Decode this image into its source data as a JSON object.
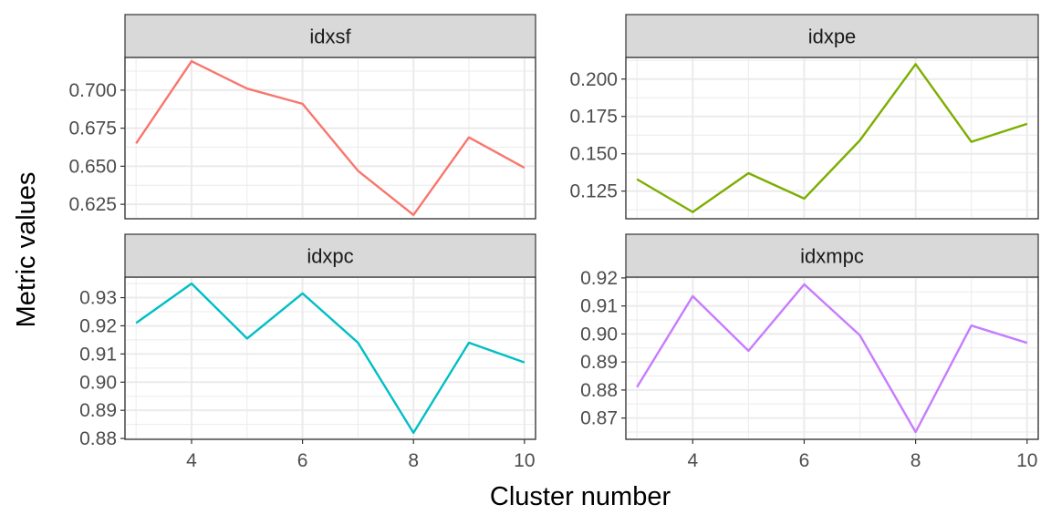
{
  "chart_data": {
    "type": "line",
    "layout": "facet-grid-2x2",
    "xlabel": "Cluster number",
    "ylabel": "Metric values",
    "x": [
      3,
      4,
      5,
      6,
      7,
      8,
      9,
      10
    ],
    "xlim": [
      2.8,
      10.2
    ],
    "xticks": [
      4,
      6,
      8,
      10
    ],
    "scales_y": "free",
    "grid": true,
    "legend": "none",
    "panels": [
      {
        "title": "idxsf",
        "color": "#F8766D",
        "values": [
          0.665,
          0.719,
          0.701,
          0.691,
          0.647,
          0.618,
          0.669,
          0.649
        ],
        "ylim": [
          0.6155,
          0.7215
        ],
        "yticks": [
          "0.625",
          "0.650",
          "0.675",
          "0.700"
        ]
      },
      {
        "title": "idxpe",
        "color": "#7CAE00",
        "values": [
          0.133,
          0.111,
          0.137,
          0.12,
          0.159,
          0.21,
          0.158,
          0.17
        ],
        "ylim": [
          0.1065,
          0.2145
        ],
        "yticks": [
          "0.125",
          "0.150",
          "0.175",
          "0.200"
        ]
      },
      {
        "title": "idxpc",
        "color": "#00BFC4",
        "values": [
          0.921,
          0.935,
          0.9155,
          0.9315,
          0.914,
          0.882,
          0.914,
          0.907
        ],
        "ylim": [
          0.8797,
          0.9373
        ],
        "yticks": [
          "0.88",
          "0.89",
          "0.90",
          "0.91",
          "0.92",
          "0.93"
        ]
      },
      {
        "title": "idxmpc",
        "color": "#C77CFF",
        "values": [
          0.881,
          0.9135,
          0.894,
          0.9177,
          0.8995,
          0.865,
          0.903,
          0.8968
        ],
        "ylim": [
          0.8624,
          0.9203
        ],
        "yticks": [
          "0.87",
          "0.88",
          "0.89",
          "0.90",
          "0.91",
          "0.92"
        ]
      }
    ]
  }
}
